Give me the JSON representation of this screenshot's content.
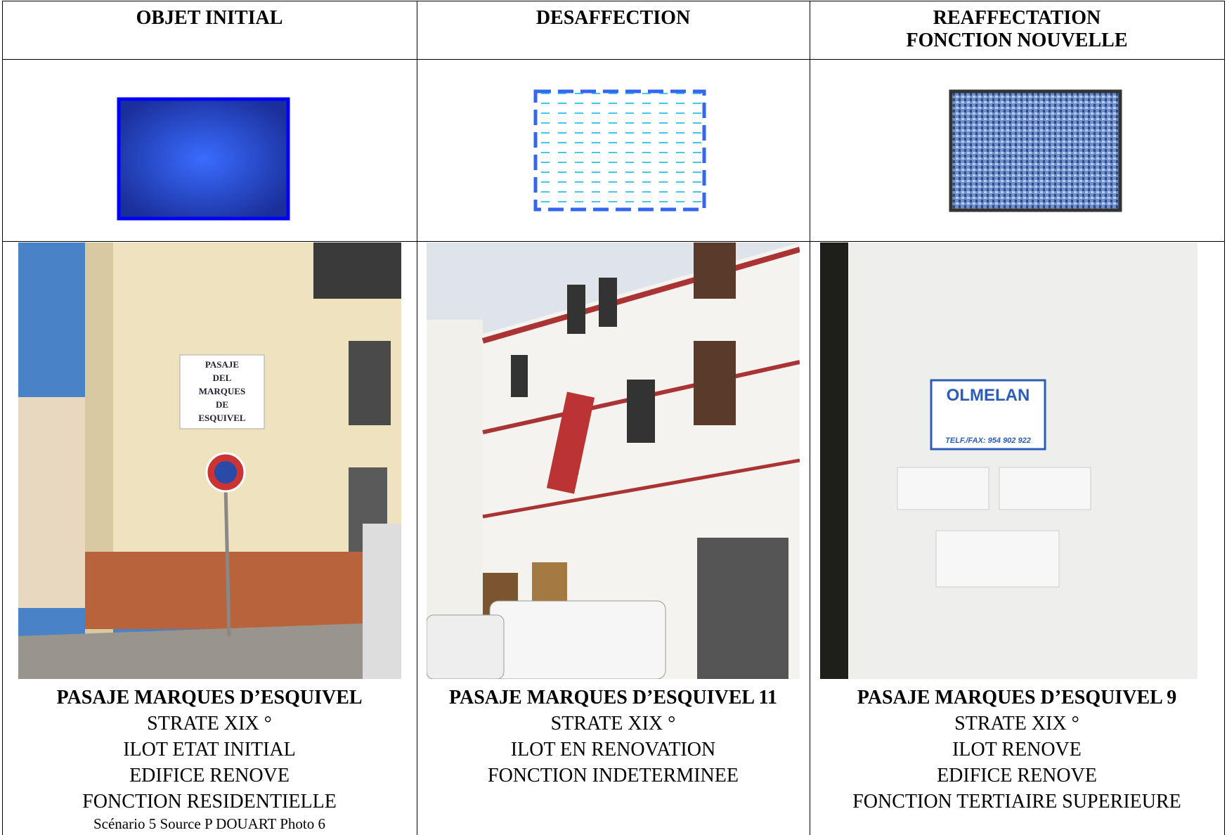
{
  "table": {
    "header": [
      [
        "OBJET INITIAL"
      ],
      [
        "DESAFFECTION"
      ],
      [
        "REAFFECTATION",
        "FONCTION NOUVELLE"
      ]
    ],
    "photo_texts": {
      "street_sign": [
        "PASAJE",
        "DEL",
        "MARQUES",
        "DE",
        "ESQUIVEL"
      ],
      "office_sign": "OLMELAN",
      "office_phone": "TELF./FAX: 954 902 922"
    },
    "captions": [
      {
        "title": "PASAJE MARQUES D’ESQUIVEL",
        "lines": [
          "STRATE XIX °",
          "ILOT ETAT INITIAL",
          "EDIFICE RENOVE",
          "FONCTION RESIDENTIELLE"
        ],
        "note": "Scénario 5 Source P DOUART Photo  6"
      },
      {
        "title": "PASAJE MARQUES D’ESQUIVEL 11",
        "lines": [
          "STRATE XIX °",
          "ILOT EN RENOVATION",
          "FONCTION INDETERMINEE"
        ]
      },
      {
        "title": "PASAJE MARQUES D’ESQUIVEL 9",
        "lines": [
          "STRATE XIX °",
          "ILOT RENOVE",
          "EDIFICE RENOVE",
          "FONCTION TERTIAIRE SUPERIEURE"
        ]
      }
    ]
  }
}
